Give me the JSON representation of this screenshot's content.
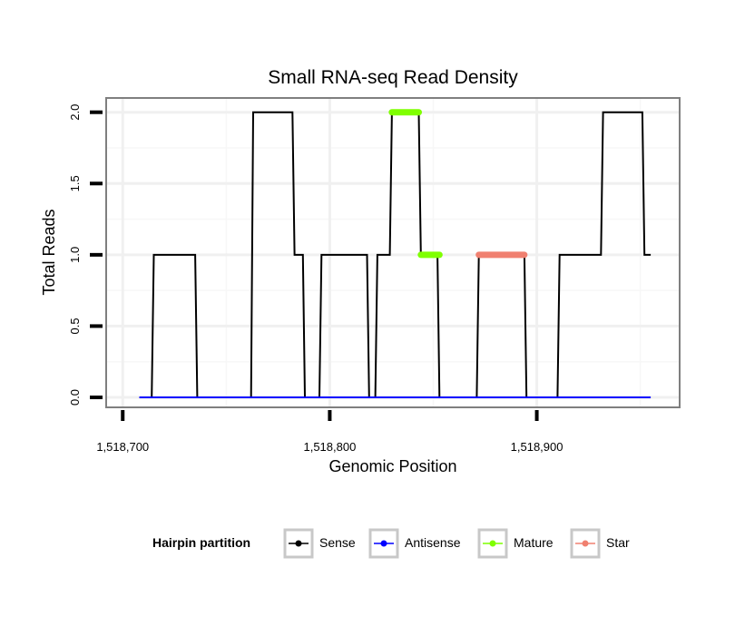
{
  "chart_data": {
    "type": "line",
    "title": "Small RNA-seq Read Density",
    "xlabel": "Genomic Position",
    "ylabel": "Total Reads",
    "xlim": [
      1518692,
      1518969
    ],
    "ylim": [
      -0.07,
      2.1
    ],
    "x_ticks": [
      1518700,
      1518800,
      1518900
    ],
    "x_tick_labels": [
      "1,518,700",
      "1,518,800",
      "1,518,900"
    ],
    "y_ticks": [
      0,
      0.5,
      1,
      1.5,
      2
    ],
    "y_tick_labels": [
      "0.0",
      "0.5",
      "1.0",
      "1.5",
      "2.0"
    ],
    "grid": true,
    "legend": {
      "title": "Hairpin partition",
      "position": "bottom",
      "entries": [
        {
          "label": "Sense",
          "color": "#000000"
        },
        {
          "label": "Antisense",
          "color": "#0000ff"
        },
        {
          "label": "Mature",
          "color": "#7fff00"
        },
        {
          "label": "Star",
          "color": "#f08070"
        }
      ]
    },
    "series": [
      {
        "name": "Sense",
        "color": "#000000",
        "x": [
          1518708,
          1518714,
          1518715,
          1518735,
          1518736,
          1518762,
          1518763,
          1518782,
          1518783,
          1518787,
          1518788,
          1518795,
          1518796,
          1518818,
          1518819,
          1518822,
          1518823,
          1518829,
          1518830,
          1518843,
          1518844,
          1518852,
          1518853,
          1518871,
          1518872,
          1518894,
          1518895,
          1518910,
          1518911,
          1518931,
          1518932,
          1518951,
          1518952,
          1518955
        ],
        "y": [
          0,
          0,
          1,
          1,
          0,
          0,
          2,
          2,
          1,
          1,
          0,
          0,
          1,
          1,
          0,
          0,
          1,
          1,
          2,
          2,
          1,
          1,
          0,
          0,
          1,
          1,
          0,
          0,
          1,
          1,
          2,
          2,
          1,
          1
        ]
      },
      {
        "name": "Antisense",
        "color": "#0000ff",
        "x": [
          1518708,
          1518955
        ],
        "y": [
          0,
          0
        ]
      },
      {
        "name": "Mature",
        "color": "#7fff00",
        "segments": [
          {
            "x": [
              1518830,
              1518843
            ],
            "y": 2
          },
          {
            "x": [
              1518844,
              1518853
            ],
            "y": 1
          }
        ]
      },
      {
        "name": "Star",
        "color": "#f08070",
        "segments": [
          {
            "x": [
              1518872,
              1518894
            ],
            "y": 1
          }
        ]
      }
    ]
  }
}
